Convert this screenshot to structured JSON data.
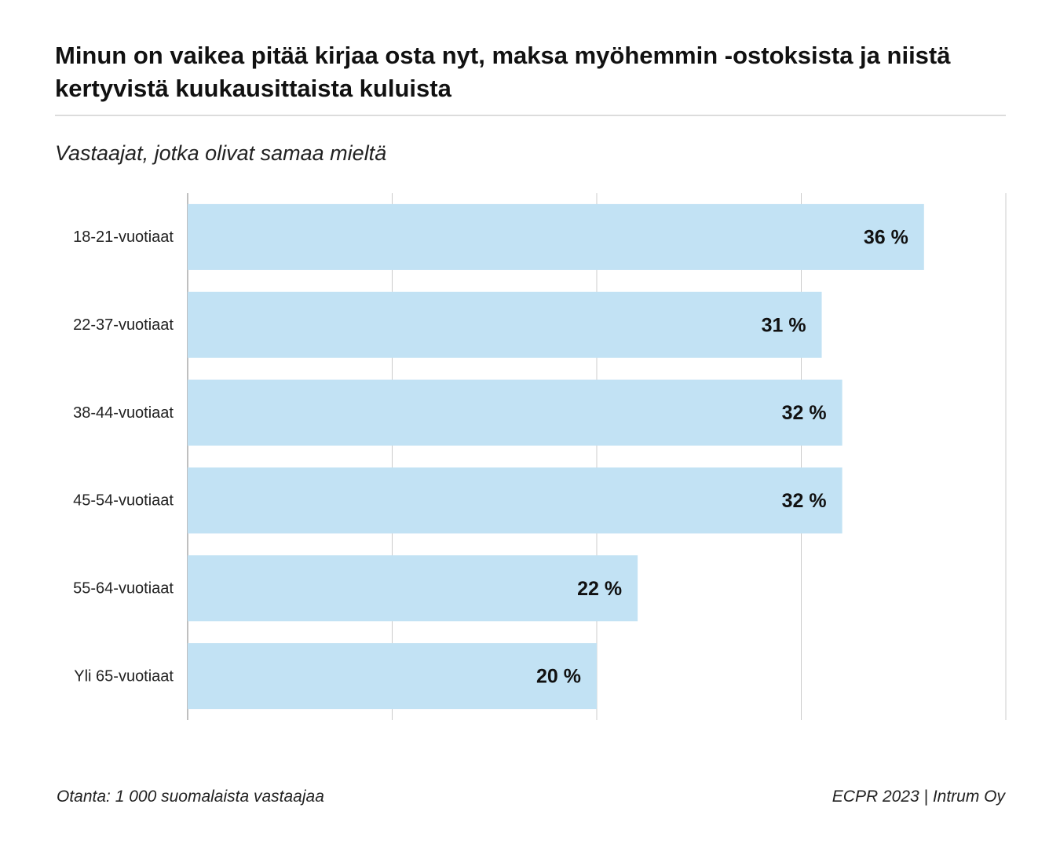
{
  "header": {
    "title": "Minun on vaikea pitää kirjaa osta nyt, maksa myöhemmin -ostoksista ja niistä kertyvistä kuukausittaista kuluista",
    "subtitle": "Vastaajat, jotka olivat samaa mieltä"
  },
  "footer": {
    "sample": "Otanta: 1 000 suomalaista vastaajaa",
    "source": "ECPR 2023 | Intrum Oy"
  },
  "colors": {
    "bar": "#c2e2f4",
    "grid": "#cccccc",
    "axis": "#aaaaaa",
    "text": "#111111"
  },
  "chart_data": {
    "type": "bar",
    "orientation": "horizontal",
    "title": "Minun on vaikea pitää kirjaa osta nyt, maksa myöhemmin -ostoksista ja niistä kertyvistä kuukausittaista kuluista",
    "subtitle": "Vastaajat, jotka olivat samaa mieltä",
    "categories": [
      "18-21-vuotiaat",
      "22-37-vuotiaat",
      "38-44-vuotiaat",
      "45-54-vuotiaat",
      "55-64-vuotiaat",
      "Yli 65-vuotiaat"
    ],
    "values": [
      36,
      31,
      32,
      32,
      22,
      20
    ],
    "value_labels": [
      "36 %",
      "31 %",
      "32 %",
      "32 %",
      "22 %",
      "20 %"
    ],
    "xlim": [
      0,
      40
    ],
    "gridlines": [
      10,
      20,
      30,
      40
    ],
    "grid": true,
    "xlabel": "",
    "ylabel": ""
  }
}
